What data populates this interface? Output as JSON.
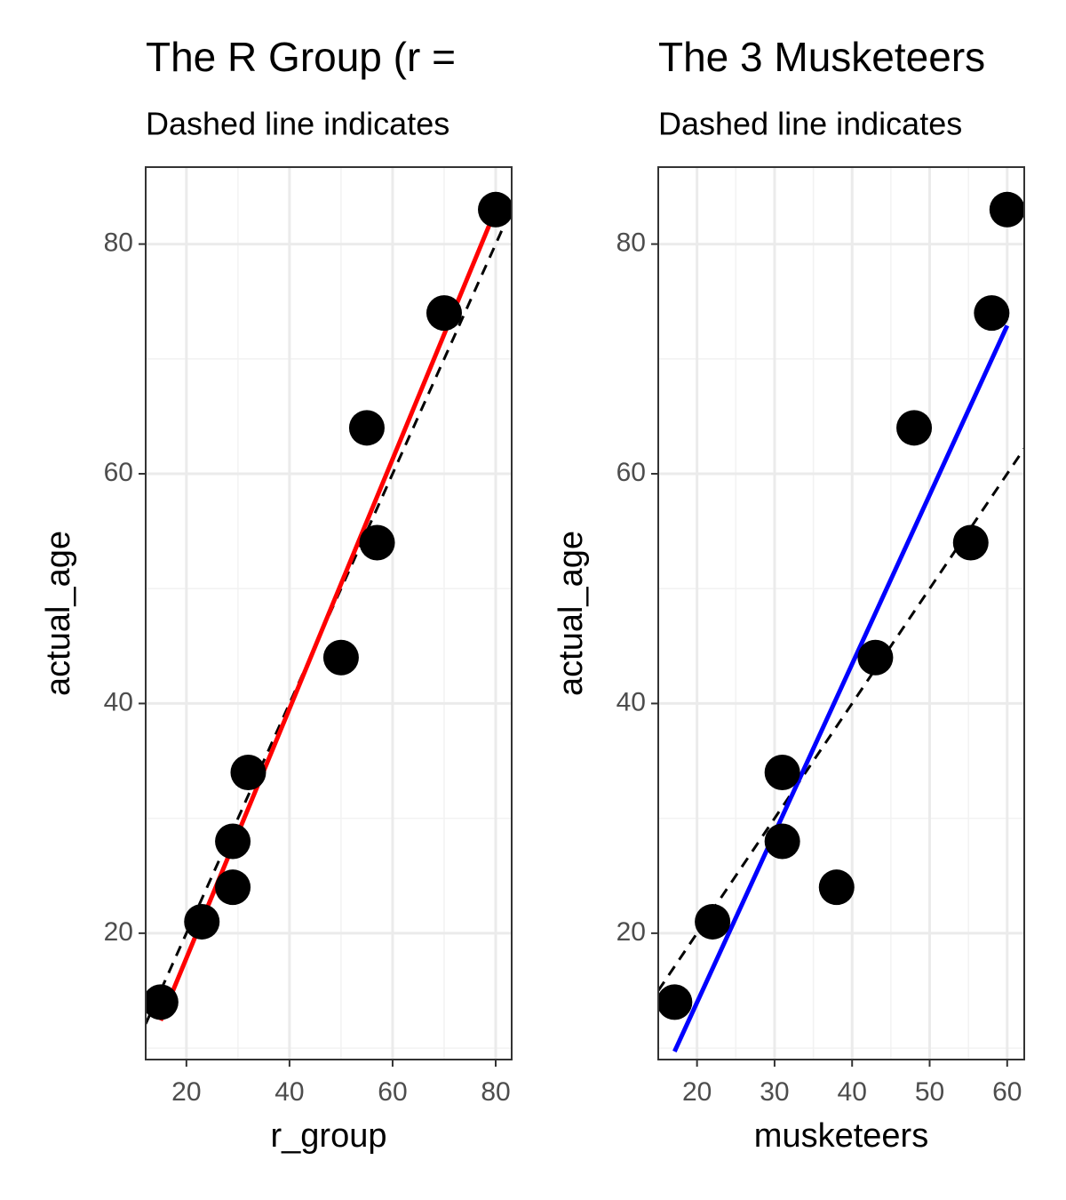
{
  "chart_data": [
    {
      "type": "scatter",
      "title": "The R Group (r =",
      "subtitle": "Dashed line indicates",
      "x_label": "r_group",
      "y_label": "actual_age",
      "x": [
        15,
        23,
        29,
        29,
        32,
        50,
        55,
        57,
        70,
        80
      ],
      "values": [
        14,
        21,
        24,
        28,
        34,
        44,
        64,
        54,
        74,
        83
      ],
      "color": "#000000",
      "fit": {
        "x": [
          15,
          80
        ],
        "y": [
          12.4,
          83
        ],
        "color": "#ff0000"
      },
      "reference_line": {
        "slope": 1,
        "intercept": 0,
        "color": "#000000"
      },
      "xlim": [
        12.1,
        83.1
      ],
      "ylim": [
        9,
        86.7
      ],
      "xticks": [
        20,
        40,
        60,
        80
      ],
      "yticks": [
        20,
        40,
        60,
        80
      ],
      "xminor": [
        30,
        50,
        70
      ],
      "yminor": [
        10,
        30,
        50,
        70
      ],
      "grid": true
    },
    {
      "type": "scatter",
      "title": "The 3 Musketeers",
      "subtitle": "Dashed line indicates",
      "x_label": "musketeers",
      "y_label": "actual_age",
      "x": [
        17.1,
        22,
        31,
        31,
        38,
        43,
        48,
        55.3,
        58,
        60
      ],
      "values": [
        14,
        21,
        34,
        28,
        24,
        44,
        64,
        54,
        74,
        83
      ],
      "color": "#000000",
      "fit": {
        "x": [
          17.1,
          60
        ],
        "y": [
          9.7,
          72.9
        ],
        "color": "#0000ff"
      },
      "reference_line": {
        "slope": 1,
        "intercept": 0,
        "color": "#000000"
      },
      "xlim": [
        15,
        62.2
      ],
      "ylim": [
        9,
        86.7
      ],
      "xticks": [
        20,
        30,
        40,
        50,
        60
      ],
      "yticks": [
        20,
        40,
        60,
        80
      ],
      "xminor": [
        25,
        35,
        45,
        55
      ],
      "yminor": [
        10,
        30,
        50,
        70
      ],
      "grid": true
    }
  ]
}
